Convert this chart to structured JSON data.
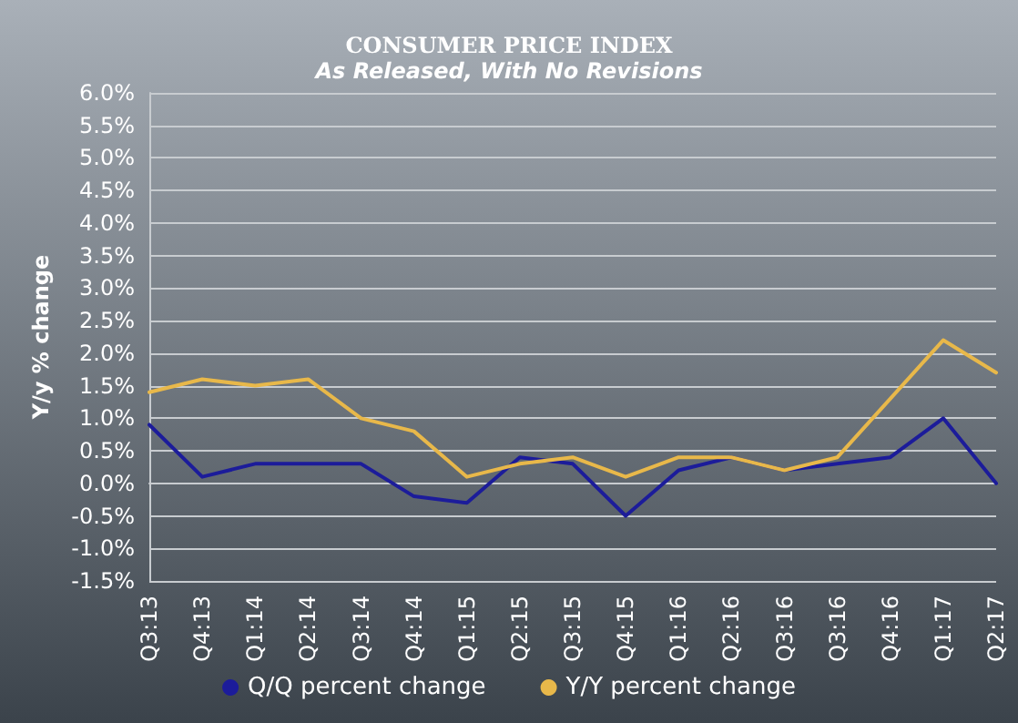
{
  "chart_data": {
    "type": "line",
    "title": "CONSUMER PRICE INDEX",
    "subtitle": "As Released, With No Revisions",
    "ylabel": "Y/y % change",
    "categories": [
      "Q3:13",
      "Q4:13",
      "Q1:14",
      "Q2:14",
      "Q3:14",
      "Q4:14",
      "Q1:15",
      "Q2:15",
      "Q3:15",
      "Q4:15",
      "Q1:16",
      "Q2:16",
      "Q3:16",
      "Q3:16",
      "Q4:16",
      "Q1:17",
      "Q2:17"
    ],
    "series": [
      {
        "name": "Q/Q percent change",
        "color": "#1c1c9a",
        "values": [
          0.9,
          0.1,
          0.3,
          0.3,
          0.3,
          -0.2,
          -0.3,
          0.4,
          0.3,
          -0.5,
          0.2,
          0.4,
          0.2,
          0.3,
          0.4,
          1.0,
          0.0
        ]
      },
      {
        "name": "Y/Y percent change",
        "color": "#e8b84a",
        "values": [
          1.4,
          1.6,
          1.5,
          1.6,
          1.0,
          0.8,
          0.1,
          0.3,
          0.4,
          0.1,
          0.4,
          0.4,
          0.2,
          0.4,
          1.3,
          2.2,
          1.7
        ]
      }
    ],
    "ylim": [
      -1.5,
      6.0
    ],
    "yticks": [
      {
        "value": -1.5,
        "label": "-1.5%"
      },
      {
        "value": -1.0,
        "label": "-1.0%"
      },
      {
        "value": -0.5,
        "label": "-0.5%"
      },
      {
        "value": 0,
        "label": "0.0%"
      },
      {
        "value": 0.5,
        "label": "0.5%"
      },
      {
        "value": 1.0,
        "label": "1.0%"
      },
      {
        "value": 1.5,
        "label": "1.5%"
      },
      {
        "value": 2.0,
        "label": "2.0%"
      },
      {
        "value": 2.5,
        "label": "2.5%"
      },
      {
        "value": 3.0,
        "label": "3.0%"
      },
      {
        "value": 3.5,
        "label": "3.5%"
      },
      {
        "value": 4.0,
        "label": "4.0%"
      },
      {
        "value": 4.5,
        "label": "4.5%"
      },
      {
        "value": 5.0,
        "label": "5.0%"
      },
      {
        "value": 5.5,
        "label": "5.5%"
      },
      {
        "value": 6.0,
        "label": "6.0%"
      }
    ],
    "grid": "y",
    "legend": "bottom",
    "line_style": "solid"
  }
}
